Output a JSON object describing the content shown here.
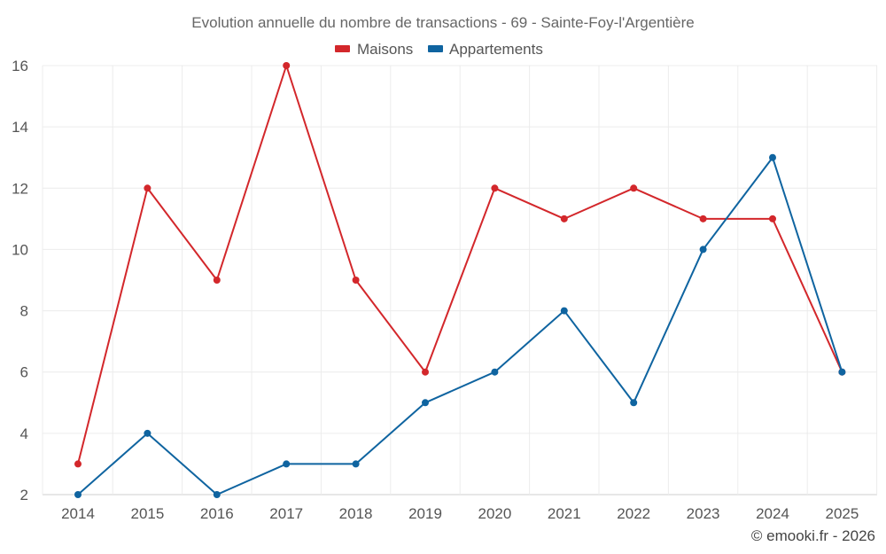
{
  "chart_data": {
    "type": "line",
    "title": "Evolution annuelle du nombre de transactions - 69 - Sainte-Foy-l'Argentière",
    "categories": [
      "2014",
      "2015",
      "2016",
      "2017",
      "2018",
      "2019",
      "2020",
      "2021",
      "2022",
      "2023",
      "2024",
      "2025"
    ],
    "series": [
      {
        "name": "Maisons",
        "color": "#d3272b",
        "values": [
          3,
          12,
          9,
          16,
          9,
          6,
          12,
          11,
          12,
          11,
          11,
          6
        ]
      },
      {
        "name": "Appartements",
        "color": "#0f64a0",
        "values": [
          2,
          4,
          2,
          3,
          3,
          5,
          6,
          8,
          5,
          10,
          13,
          6
        ]
      }
    ],
    "ylim": [
      2,
      16
    ],
    "yticks": [
      2,
      4,
      6,
      8,
      10,
      12,
      14,
      16
    ],
    "xlabel": "",
    "ylabel": "",
    "grid": true,
    "legend_position": "top-center"
  },
  "credit": "© emooki.fr - 2026"
}
